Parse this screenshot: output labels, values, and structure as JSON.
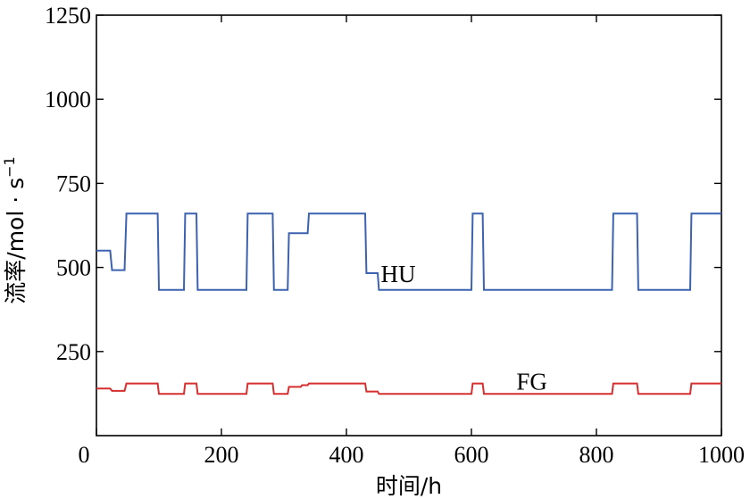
{
  "chart_data": {
    "type": "line",
    "title": "",
    "xlabel": "时间/h",
    "ylabel": "流率/mol · s",
    "ylabel_sup": "−1",
    "xlim": [
      0,
      1000
    ],
    "ylim": [
      0,
      1250
    ],
    "xticks": [
      0,
      200,
      400,
      600,
      800,
      1000
    ],
    "yticks": [
      250,
      500,
      750,
      1000,
      1250
    ],
    "grid": false,
    "legend": "none (series labelled inline)",
    "series": [
      {
        "name": "HU",
        "color": "#3d62b0",
        "label_at": [
          455,
          480
        ],
        "x": [
          0,
          22,
          25,
          45,
          48,
          68,
          72,
          98,
          100,
          140,
          142,
          160,
          162,
          195,
          197,
          240,
          242,
          282,
          284,
          306,
          308,
          327,
          329,
          338,
          340,
          400,
          430,
          432,
          450,
          452,
          600,
          602,
          618,
          620,
          800,
          802,
          825,
          827,
          865,
          867,
          950,
          952,
          1000
        ],
        "y": [
          550,
          550,
          492,
          492,
          660,
          660,
          660,
          660,
          433,
          433,
          660,
          660,
          433,
          433,
          433,
          433,
          660,
          660,
          433,
          433,
          602,
          602,
          602,
          602,
          660,
          660,
          660,
          483,
          483,
          433,
          433,
          660,
          660,
          433,
          433,
          433,
          433,
          660,
          660,
          433,
          433,
          660,
          660
        ]
      },
      {
        "name": "FG",
        "color": "#d62f2f",
        "label_at": [
          672,
          160
        ],
        "x": [
          0,
          22,
          25,
          45,
          48,
          68,
          72,
          98,
          100,
          140,
          142,
          160,
          162,
          195,
          197,
          240,
          242,
          282,
          284,
          306,
          308,
          327,
          329,
          338,
          340,
          400,
          430,
          432,
          450,
          452,
          600,
          602,
          618,
          620,
          800,
          802,
          825,
          827,
          865,
          867,
          950,
          952,
          1000
        ],
        "y": [
          140,
          140,
          133,
          133,
          155,
          155,
          155,
          155,
          124,
          124,
          155,
          155,
          124,
          124,
          124,
          124,
          155,
          155,
          124,
          124,
          145,
          145,
          150,
          150,
          155,
          155,
          155,
          131,
          131,
          124,
          124,
          155,
          155,
          124,
          124,
          124,
          124,
          155,
          155,
          124,
          124,
          155,
          155
        ]
      }
    ]
  }
}
